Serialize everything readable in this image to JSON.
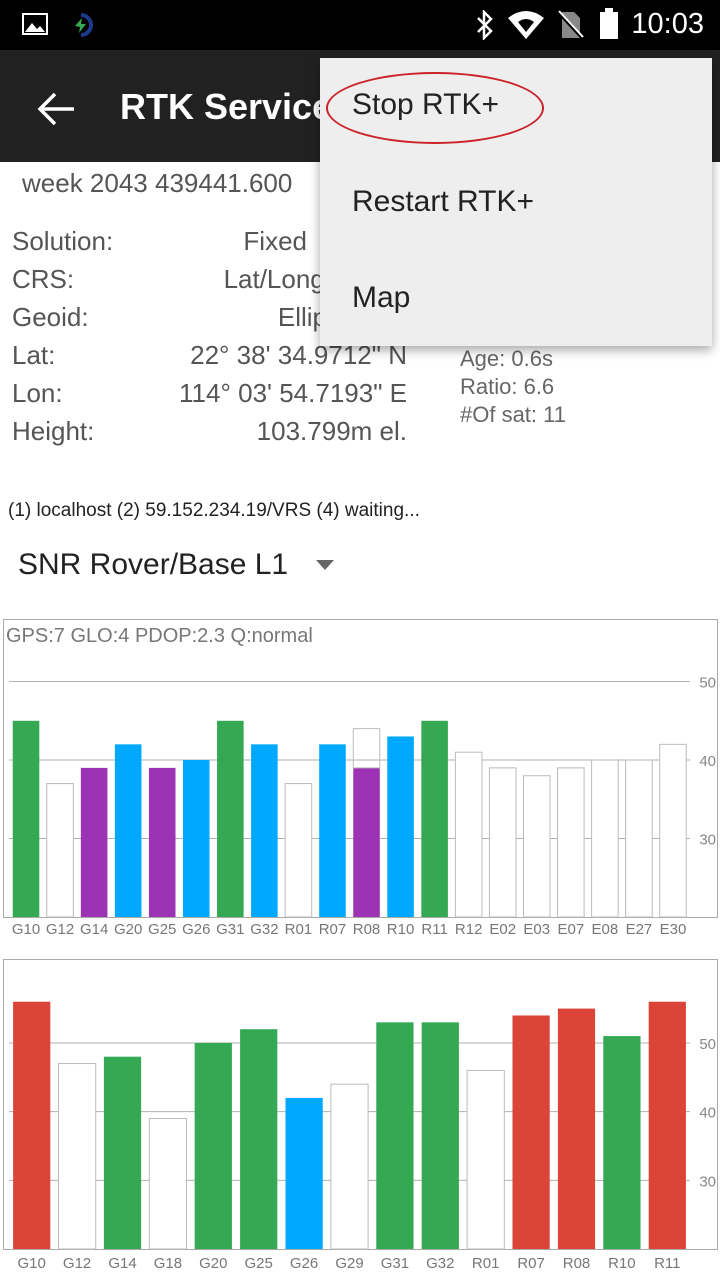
{
  "status_bar": {
    "time": "10:03",
    "icons": [
      "image-icon",
      "app-icon",
      "bluetooth-icon",
      "wifi-icon",
      "no-sim-icon",
      "battery-icon"
    ]
  },
  "app_bar": {
    "title": "RTK Service",
    "back_icon": "back-arrow-icon"
  },
  "week_line": "week 2043 439441.600",
  "info": [
    {
      "label": "Solution:",
      "value": "Fixed"
    },
    {
      "label": "CRS:",
      "value": "Lat/Long/"
    },
    {
      "label": "Geoid:",
      "value": "Ellip"
    },
    {
      "label": "Lat:",
      "value": "22° 38' 34.9712\" N"
    },
    {
      "label": "Lon:",
      "value": "114° 03' 54.7193\" E"
    },
    {
      "label": "Height:",
      "value": "103.799m el."
    }
  ],
  "side_info": {
    "age": "Age: 0.6s",
    "ratio": "Ratio: 6.6",
    "sats": "#Of sat: 11"
  },
  "connection_line": "(1) localhost (2) 59.152.234.19/VRS (4) waiting...",
  "selector": {
    "label": "SNR Rover/Base L1"
  },
  "menu": {
    "items": [
      "Stop RTK+",
      "Restart RTK+",
      "Map"
    ]
  },
  "colors": {
    "green": "#34a853",
    "blue": "#00a9ff",
    "purple": "#9c33b4",
    "red": "#db4437",
    "hollow": "#ffffff"
  },
  "chart_data": [
    {
      "type": "bar",
      "title": "GPS:7 GLO:4 PDOP:2.3 Q:normal",
      "categories": [
        "G10",
        "G12",
        "G14",
        "G20",
        "G25",
        "G26",
        "G31",
        "G32",
        "R01",
        "R07",
        "R08",
        "R10",
        "R11",
        "R12",
        "E02",
        "E03",
        "E07",
        "E08",
        "E27",
        "E30"
      ],
      "series": [
        {
          "values": [
            45,
            37,
            39,
            42,
            39,
            40,
            45,
            42,
            37,
            42,
            39,
            43,
            45,
            41,
            39,
            38,
            39,
            40,
            40,
            42
          ],
          "colors": [
            "green",
            "hollow",
            "purple",
            "blue",
            "purple",
            "blue",
            "green",
            "blue",
            "hollow",
            "blue",
            "purple",
            "blue",
            "green",
            "hollow",
            "hollow",
            "hollow",
            "hollow",
            "hollow",
            "hollow",
            "hollow"
          ]
        },
        {
          "values": [
            null,
            null,
            null,
            null,
            null,
            null,
            null,
            null,
            null,
            null,
            44,
            null,
            null,
            null,
            null,
            null,
            null,
            null,
            null,
            null
          ]
        }
      ],
      "yticks": [
        30,
        40,
        50
      ],
      "ylim": [
        20,
        53
      ],
      "grid": true
    },
    {
      "type": "bar",
      "categories": [
        "G10",
        "G12",
        "G14",
        "G18",
        "G20",
        "G25",
        "G26",
        "G29",
        "G31",
        "G32",
        "R01",
        "R07",
        "R08",
        "R10",
        "R11"
      ],
      "series": [
        {
          "values": [
            56,
            47,
            48,
            39,
            50,
            52,
            42,
            44,
            53,
            53,
            46,
            54,
            55,
            51,
            56
          ],
          "colors": [
            "red",
            "hollow",
            "green",
            "hollow",
            "green",
            "green",
            "blue",
            "hollow",
            "green",
            "green",
            "hollow",
            "red",
            "red",
            "green",
            "red"
          ]
        }
      ],
      "yticks": [
        30,
        40,
        50
      ],
      "ylim": [
        20,
        58
      ],
      "grid": true
    }
  ]
}
